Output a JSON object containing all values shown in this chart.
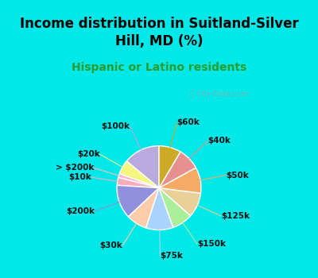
{
  "title": "Income distribution in Suitland-Silver\nHill, MD (%)",
  "subtitle": "Hispanic or Latino residents",
  "title_color": "#000000",
  "subtitle_color": "#2a9d2a",
  "background_top": "#00e8e8",
  "background_chart": "#dff0e8",
  "watermark": "ⓘ City-Data.com",
  "labels": [
    "$100k",
    "$20k",
    "> $200k",
    "$10k",
    "$200k",
    "$30k",
    "$75k",
    "$150k",
    "$125k",
    "$50k",
    "$40k",
    "$60k"
  ],
  "values": [
    14.0,
    5.5,
    1.5,
    3.0,
    13.0,
    8.0,
    10.5,
    8.0,
    9.5,
    10.0,
    8.5,
    8.5
  ],
  "colors": [
    "#b8aade",
    "#f5f580",
    "#ffb8c8",
    "#ffaabf",
    "#9090dd",
    "#ffccaa",
    "#aad4ff",
    "#aaee99",
    "#e8d098",
    "#f5aa66",
    "#e89090",
    "#ccaa28"
  ],
  "startangle": 90,
  "label_fontsize": 7.5,
  "title_fontsize": 12,
  "subtitle_fontsize": 10
}
